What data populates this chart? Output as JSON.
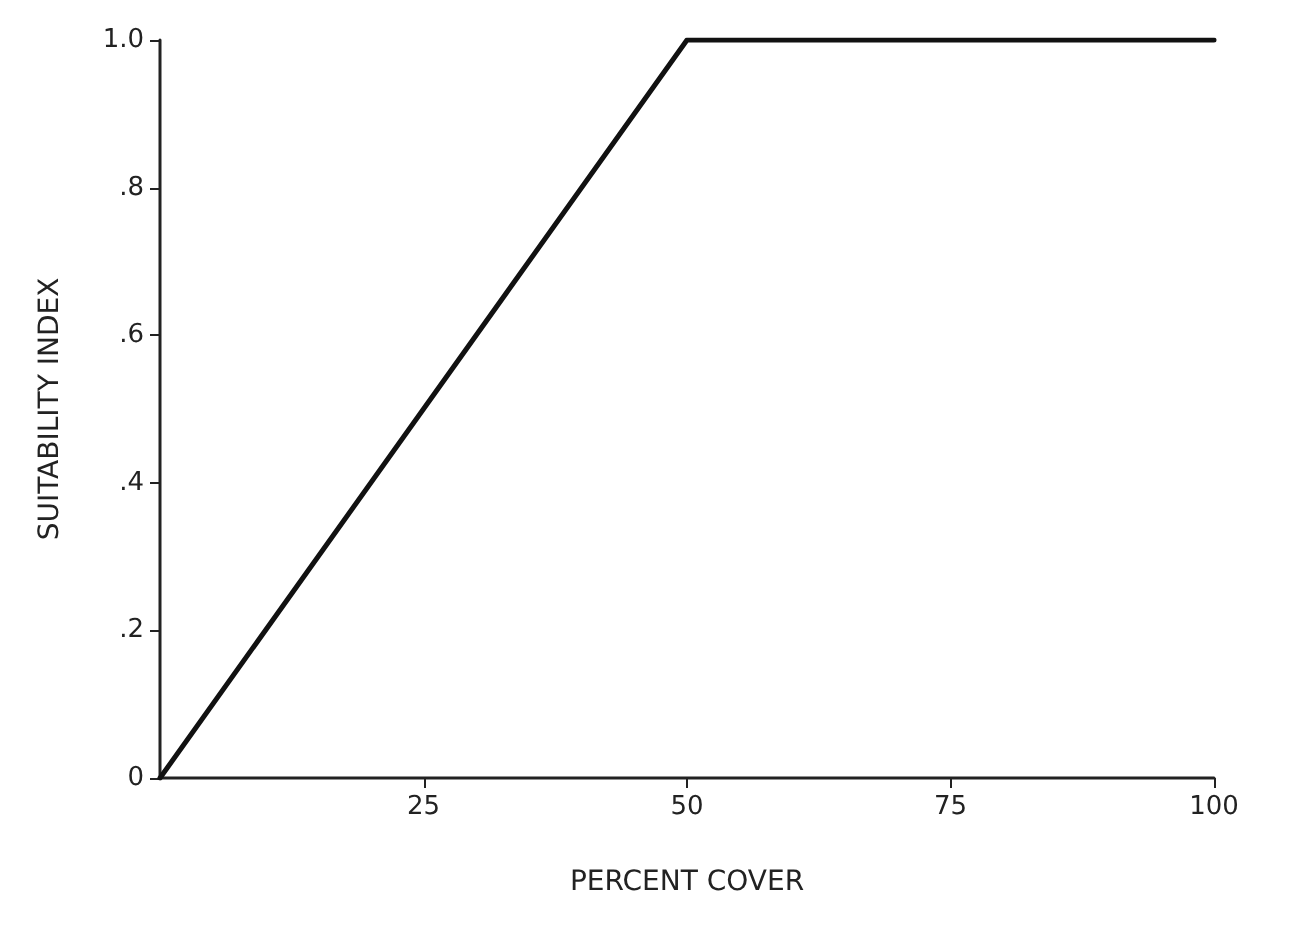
{
  "chart_data": {
    "type": "line",
    "xlabel": "PERCENT COVER",
    "ylabel": "SUITABILITY INDEX",
    "x": [
      0,
      50,
      100
    ],
    "series": [
      {
        "color": "#111111",
        "values": [
          0,
          1,
          1
        ]
      }
    ],
    "xlim": [
      0,
      100
    ],
    "xticks": [
      25,
      50,
      75,
      100
    ],
    "ylim": [
      0,
      1
    ],
    "yticks": [
      {
        "value": 0,
        "label": "0"
      },
      {
        "value": 0.2,
        "label": ".2"
      },
      {
        "value": 0.4,
        "label": ".4"
      },
      {
        "value": 0.6,
        "label": ".6"
      },
      {
        "value": 0.8,
        "label": ".8"
      },
      {
        "value": 1,
        "label": "1.0"
      }
    ],
    "marker": "none",
    "line_style": "solid"
  }
}
